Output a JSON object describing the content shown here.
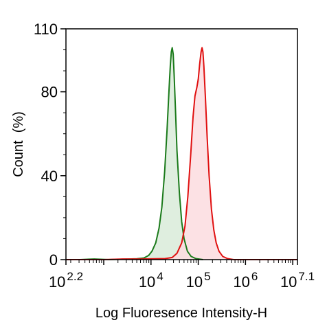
{
  "chart_data": {
    "type": "area",
    "xlabel": "Log Fluoresence Intensity-H",
    "ylabel": "Count  (%)",
    "x_scale": "log",
    "xlim_log10": [
      2.2,
      7.1
    ],
    "ylim": [
      0,
      110
    ],
    "x_ticks": [
      {
        "base": "10",
        "exp": "2.2",
        "log10": 2.2
      },
      {
        "base": "10",
        "exp": "4",
        "log10": 4
      },
      {
        "base": "10",
        "exp": "5",
        "log10": 5
      },
      {
        "base": "10",
        "exp": "6",
        "log10": 6
      },
      {
        "base": "10",
        "exp": "7.1",
        "log10": 7.1
      }
    ],
    "y_ticks": [
      "0",
      "40",
      "80",
      "110"
    ],
    "y_tick_values": [
      0,
      40,
      80,
      110
    ],
    "grid": false,
    "legend": "none",
    "series": [
      {
        "color": "#1a7a1a",
        "fill": "#d9ebd9",
        "points": [
          [
            2.2,
            0
          ],
          [
            2.5,
            0
          ],
          [
            2.8,
            0.3
          ],
          [
            3.1,
            0
          ],
          [
            3.4,
            0.2
          ],
          [
            3.7,
            0.4
          ],
          [
            3.85,
            0.8
          ],
          [
            3.95,
            2
          ],
          [
            4.02,
            4
          ],
          [
            4.1,
            8
          ],
          [
            4.17,
            15
          ],
          [
            4.23,
            25
          ],
          [
            4.29,
            42
          ],
          [
            4.34,
            62
          ],
          [
            4.38,
            80
          ],
          [
            4.41,
            93
          ],
          [
            4.43,
            99
          ],
          [
            4.45,
            101
          ],
          [
            4.47,
            98
          ],
          [
            4.49,
            88
          ],
          [
            4.52,
            70
          ],
          [
            4.55,
            52
          ],
          [
            4.6,
            32
          ],
          [
            4.65,
            18
          ],
          [
            4.7,
            10
          ],
          [
            4.77,
            4
          ],
          [
            4.85,
            1.5
          ],
          [
            4.95,
            0.5
          ],
          [
            5.1,
            0
          ]
        ]
      },
      {
        "color": "#e01010",
        "fill": "#fbdcdf",
        "points": [
          [
            2.2,
            0
          ],
          [
            3.0,
            0
          ],
          [
            3.4,
            0.3
          ],
          [
            3.8,
            0.3
          ],
          [
            4.3,
            0.5
          ],
          [
            4.45,
            1
          ],
          [
            4.55,
            3
          ],
          [
            4.65,
            8
          ],
          [
            4.72,
            16
          ],
          [
            4.78,
            30
          ],
          [
            4.84,
            50
          ],
          [
            4.89,
            68
          ],
          [
            4.93,
            78
          ],
          [
            4.97,
            82
          ],
          [
            5.0,
            86
          ],
          [
            5.03,
            93
          ],
          [
            5.06,
            99
          ],
          [
            5.08,
            101
          ],
          [
            5.1,
            99
          ],
          [
            5.12,
            92
          ],
          [
            5.15,
            78
          ],
          [
            5.19,
            58
          ],
          [
            5.23,
            40
          ],
          [
            5.28,
            24
          ],
          [
            5.33,
            14
          ],
          [
            5.38,
            8
          ],
          [
            5.44,
            4
          ],
          [
            5.52,
            1.5
          ],
          [
            5.62,
            0.5
          ],
          [
            5.75,
            0
          ],
          [
            7.1,
            0
          ]
        ]
      }
    ]
  }
}
